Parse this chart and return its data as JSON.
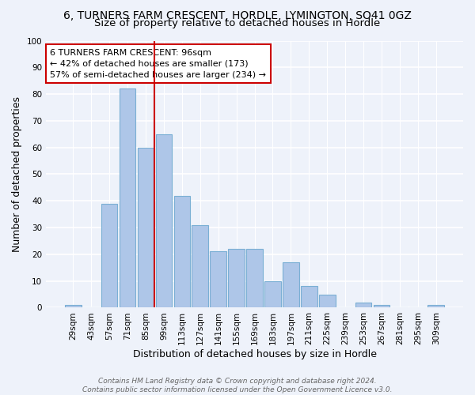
{
  "title": "6, TURNERS FARM CRESCENT, HORDLE, LYMINGTON, SO41 0GZ",
  "subtitle": "Size of property relative to detached houses in Hordle",
  "xlabel": "Distribution of detached houses by size in Hordle",
  "ylabel": "Number of detached properties",
  "categories": [
    "29sqm",
    "43sqm",
    "57sqm",
    "71sqm",
    "85sqm",
    "99sqm",
    "113sqm",
    "127sqm",
    "141sqm",
    "155sqm",
    "169sqm",
    "183sqm",
    "197sqm",
    "211sqm",
    "225sqm",
    "239sqm",
    "253sqm",
    "267sqm",
    "281sqm",
    "295sqm",
    "309sqm"
  ],
  "values": [
    1,
    0,
    39,
    82,
    60,
    65,
    42,
    31,
    21,
    22,
    22,
    10,
    17,
    8,
    5,
    0,
    2,
    1,
    0,
    0,
    1
  ],
  "bar_color": "#aec6e8",
  "bar_edge_color": "#7aafd4",
  "property_line_color": "#cc0000",
  "annotation_text": "6 TURNERS FARM CRESCENT: 96sqm\n← 42% of detached houses are smaller (173)\n57% of semi-detached houses are larger (234) →",
  "annotation_box_color": "#ffffff",
  "annotation_box_edge": "#cc0000",
  "ylim": [
    0,
    100
  ],
  "yticks": [
    0,
    10,
    20,
    30,
    40,
    50,
    60,
    70,
    80,
    90,
    100
  ],
  "background_color": "#eef2fa",
  "footer_text": "Contains HM Land Registry data © Crown copyright and database right 2024.\nContains public sector information licensed under the Open Government Licence v3.0.",
  "title_fontsize": 10,
  "subtitle_fontsize": 9.5,
  "xlabel_fontsize": 9,
  "ylabel_fontsize": 9,
  "tick_fontsize": 7.5,
  "annotation_fontsize": 8,
  "footer_fontsize": 6.5
}
